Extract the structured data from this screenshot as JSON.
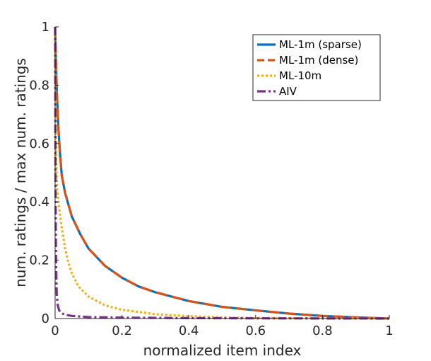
{
  "chart_data": {
    "type": "line",
    "title": "",
    "xlabel": "normalized item index",
    "ylabel": "num. ratings / max num. ratings",
    "xlim": [
      0,
      1
    ],
    "ylim": [
      0,
      1
    ],
    "xticks": [
      {
        "value": 0,
        "label": "0"
      },
      {
        "value": 0.2,
        "label": "0.2"
      },
      {
        "value": 0.4,
        "label": "0.4"
      },
      {
        "value": 0.6,
        "label": "0.6"
      },
      {
        "value": 0.8,
        "label": "0.8"
      },
      {
        "value": 1,
        "label": "1"
      }
    ],
    "yticks": [
      {
        "value": 0,
        "label": "0"
      },
      {
        "value": 0.2,
        "label": "0.2"
      },
      {
        "value": 0.4,
        "label": "0.4"
      },
      {
        "value": 0.6,
        "label": "0.6"
      },
      {
        "value": 0.8,
        "label": "0.8"
      },
      {
        "value": 1,
        "label": "1"
      }
    ],
    "grid": false,
    "legend_position": "top-right",
    "series": [
      {
        "name": "ML-1m (sparse)",
        "color": "#0072BD",
        "style": "solid",
        "x": [
          0,
          0.001,
          0.003,
          0.005,
          0.01,
          0.015,
          0.02,
          0.03,
          0.05,
          0.075,
          0.1,
          0.15,
          0.2,
          0.25,
          0.3,
          0.4,
          0.5,
          0.6,
          0.7,
          0.8,
          0.9,
          1.0
        ],
        "y": [
          1.0,
          0.97,
          0.86,
          0.78,
          0.65,
          0.56,
          0.49,
          0.43,
          0.35,
          0.29,
          0.24,
          0.18,
          0.14,
          0.11,
          0.09,
          0.06,
          0.04,
          0.028,
          0.017,
          0.009,
          0.004,
          0.0
        ]
      },
      {
        "name": "ML-1m (dense)",
        "color": "#D95319",
        "style": "dashed",
        "x": [
          0,
          0.001,
          0.003,
          0.005,
          0.01,
          0.015,
          0.02,
          0.03,
          0.05,
          0.075,
          0.1,
          0.15,
          0.2,
          0.25,
          0.3,
          0.4,
          0.5,
          0.6,
          0.7,
          0.8,
          0.9,
          1.0
        ],
        "y": [
          1.0,
          0.97,
          0.86,
          0.78,
          0.65,
          0.56,
          0.49,
          0.43,
          0.35,
          0.29,
          0.24,
          0.18,
          0.14,
          0.11,
          0.09,
          0.06,
          0.04,
          0.028,
          0.017,
          0.009,
          0.004,
          0.0
        ]
      },
      {
        "name": "ML-10m",
        "color": "#EDB120",
        "style": "dotted",
        "x": [
          0,
          0.001,
          0.003,
          0.006,
          0.01,
          0.02,
          0.03,
          0.04,
          0.05,
          0.07,
          0.1,
          0.15,
          0.2,
          0.3,
          0.4,
          0.5,
          0.6,
          0.8,
          1.0
        ],
        "y": [
          1.0,
          0.8,
          0.55,
          0.44,
          0.4,
          0.31,
          0.24,
          0.19,
          0.155,
          0.11,
          0.075,
          0.045,
          0.03,
          0.015,
          0.008,
          0.004,
          0.002,
          0.0005,
          0.0
        ]
      },
      {
        "name": "AIV",
        "color": "#7E2F8E",
        "style": "dashdot",
        "x": [
          0,
          0.0005,
          0.001,
          0.002,
          0.003,
          0.005,
          0.008,
          0.012,
          0.02,
          0.03,
          0.05,
          0.1,
          0.2,
          0.4,
          0.6,
          0.8,
          1.0
        ],
        "y": [
          1.0,
          0.9,
          0.55,
          0.3,
          0.18,
          0.08,
          0.045,
          0.028,
          0.018,
          0.013,
          0.009,
          0.005,
          0.003,
          0.0015,
          0.0008,
          0.0003,
          0.0
        ]
      }
    ]
  }
}
